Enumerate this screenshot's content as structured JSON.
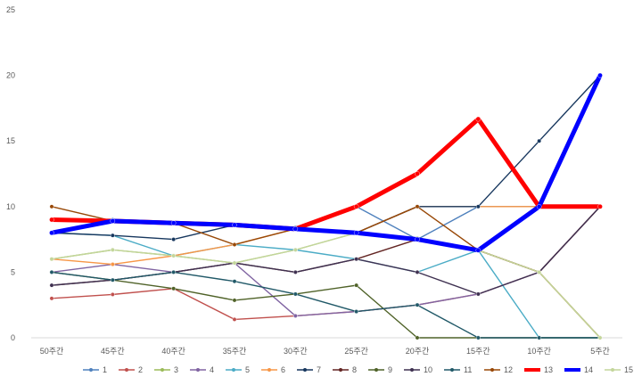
{
  "chart_data": {
    "type": "line",
    "title": "",
    "xlabel": "",
    "ylabel": "",
    "ylim": [
      0,
      25
    ],
    "yticks": [
      0,
      5,
      10,
      15,
      20,
      25
    ],
    "grid": false,
    "legend_position": "bottom",
    "categories": [
      "50주간",
      "45주간",
      "40주간",
      "35주간",
      "30주간",
      "25주간",
      "20주간",
      "15주간",
      "10주간",
      "5주간"
    ],
    "series": [
      {
        "name": "1",
        "color": "#4F81BD",
        "values": [
          9,
          9,
          8.75,
          8.6,
          8.4,
          10,
          7.5,
          10,
          10,
          10
        ]
      },
      {
        "name": "2",
        "color": "#C0504D",
        "values": [
          3,
          3.3,
          3.75,
          1.4,
          1.67,
          2,
          2.5,
          3.33,
          5,
          10
        ]
      },
      {
        "name": "3",
        "color": "#9BBB59",
        "values": [
          6,
          6.7,
          6.25,
          5.7,
          6.7,
          8,
          7.5,
          6.67,
          5,
          0
        ]
      },
      {
        "name": "4",
        "color": "#8064A2",
        "values": [
          5,
          5.6,
          5,
          5.7,
          1.67,
          2,
          2.5,
          3.33,
          5,
          10
        ]
      },
      {
        "name": "5",
        "color": "#4BACC6",
        "values": [
          8,
          7.8,
          6.25,
          7.1,
          6.7,
          6,
          5,
          6.67,
          0,
          0
        ]
      },
      {
        "name": "6",
        "color": "#F79646",
        "values": [
          6,
          5.6,
          6.25,
          7.1,
          8.3,
          8,
          10,
          10,
          10,
          10
        ]
      },
      {
        "name": "7",
        "color": "#17375E",
        "values": [
          8,
          7.8,
          7.5,
          8.6,
          8.3,
          8,
          10,
          10,
          15,
          20
        ]
      },
      {
        "name": "8",
        "color": "#632523",
        "values": [
          4,
          4.4,
          5,
          5.7,
          5,
          6,
          7.5,
          6.67,
          5,
          10
        ]
      },
      {
        "name": "9",
        "color": "#4F6228",
        "values": [
          5,
          4.4,
          3.75,
          2.86,
          3.33,
          4,
          0,
          0,
          0,
          0
        ]
      },
      {
        "name": "10",
        "color": "#3F3151",
        "values": [
          4,
          4.4,
          5,
          5.7,
          5,
          6,
          5,
          3.33,
          5,
          10
        ]
      },
      {
        "name": "11",
        "color": "#215968",
        "values": [
          5,
          4.4,
          5,
          4.3,
          3.33,
          2,
          2.5,
          0,
          0,
          0
        ]
      },
      {
        "name": "12",
        "color": "#984807",
        "values": [
          10,
          8.9,
          8.75,
          7.1,
          8.3,
          8,
          10,
          6.67,
          5,
          0
        ]
      },
      {
        "name": "13",
        "color": "#FF0000",
        "values": [
          9,
          8.9,
          8.75,
          8.6,
          8.3,
          10,
          12.5,
          16.67,
          10,
          10
        ],
        "bold": true
      },
      {
        "name": "14",
        "color": "#0000FF",
        "values": [
          8,
          8.9,
          8.75,
          8.6,
          8.3,
          8,
          7.5,
          6.67,
          10,
          20
        ],
        "bold": true
      },
      {
        "name": "15",
        "color": "#C3D69B",
        "values": [
          6,
          6.7,
          6.25,
          5.7,
          6.7,
          8,
          7.6,
          6.67,
          5,
          0
        ]
      }
    ]
  }
}
